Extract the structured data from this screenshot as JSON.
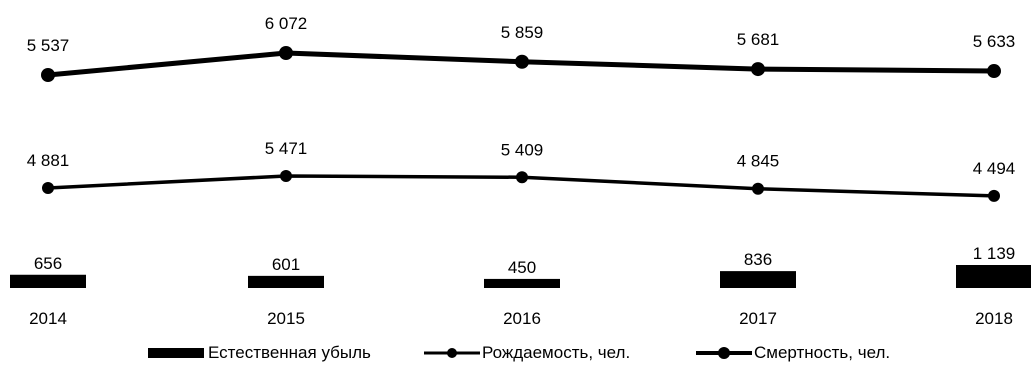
{
  "chart_data": {
    "type": "line",
    "categories": [
      "2014",
      "2015",
      "2016",
      "2017",
      "2018"
    ],
    "series": [
      {
        "name": "Естественная убыль",
        "type": "bar",
        "values": [
          656,
          601,
          450,
          836,
          1139
        ],
        "labels": [
          "656",
          "601",
          "450",
          "836",
          "1 139"
        ],
        "color": "#000000"
      },
      {
        "name": "Рождаемость, чел.",
        "type": "line",
        "values": [
          4881,
          5471,
          5409,
          4845,
          4494
        ],
        "labels": [
          "4 881",
          "5 471",
          "5 409",
          "4 845",
          "4 494"
        ],
        "color": "#000000"
      },
      {
        "name": "Смертность, чел.",
        "type": "line",
        "values": [
          5537,
          6072,
          5859,
          5681,
          5633
        ],
        "labels": [
          "5 537",
          "6 072",
          "5 859",
          "5 681",
          "5 633"
        ],
        "color": "#000000"
      }
    ],
    "legend_position": "bottom",
    "grid": false
  },
  "legend": {
    "decline": "Естественная убыль",
    "birth": "Рождаемость, чел.",
    "death": "Смертность, чел."
  }
}
